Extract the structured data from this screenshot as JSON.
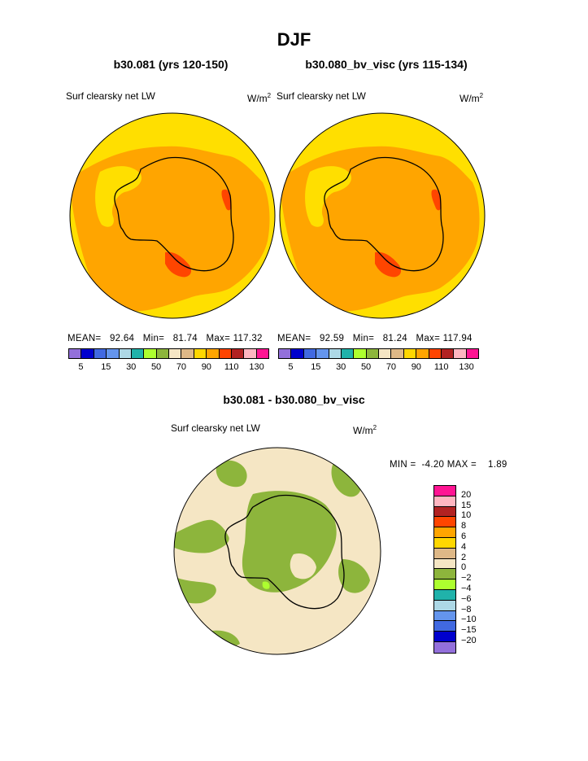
{
  "title": "DJF",
  "panels": [
    {
      "subtitle": "b30.081 (yrs 120-150)",
      "variable": "Surf clearsky net LW",
      "units_base": "W/m",
      "units_sup": "2",
      "stats": {
        "mean_label": "MEAN=",
        "mean": "92.64",
        "min_label": "Min=",
        "min": "81.74",
        "max_label": "Max=",
        "max": "117.32"
      }
    },
    {
      "subtitle": "b30.080_bv_visc (yrs 115-134)",
      "variable": "Surf clearsky net LW",
      "units_base": "W/m",
      "units_sup": "2",
      "stats": {
        "mean_label": "MEAN=",
        "mean": "92.59",
        "min_label": "Min=",
        "min": "81.24",
        "max_label": "Max=",
        "max": "117.94"
      }
    }
  ],
  "diff_panel": {
    "subtitle": "b30.081 - b30.080_bv_visc",
    "variable": "Surf clearsky net LW",
    "units_base": "W/m",
    "units_sup": "2",
    "stats": {
      "min_label": "MIN =",
      "min": "-4.20",
      "max_label": "MAX =",
      "max": "1.89"
    }
  },
  "colorbar_top": {
    "colors": [
      "#9370db",
      "#0000cd",
      "#4169e1",
      "#6495ed",
      "#add8e6",
      "#20b2aa",
      "#adff2f",
      "#8db53c",
      "#f5e6c4",
      "#deb887",
      "#ffd700",
      "#ffa500",
      "#ff4500",
      "#b22222",
      "#ffb6c1",
      "#ff1493"
    ],
    "tick_labels": [
      "5",
      "15",
      "30",
      "50",
      "70",
      "90",
      "110",
      "130"
    ]
  },
  "colorbar_diff": {
    "colors": [
      "#ff1493",
      "#ffb6c1",
      "#b22222",
      "#ff4500",
      "#ffa500",
      "#ffd700",
      "#deb887",
      "#f5e6c4",
      "#8db53c",
      "#adff2f",
      "#20b2aa",
      "#add8e6",
      "#6495ed",
      "#4169e1",
      "#0000cd",
      "#9370db"
    ],
    "tick_labels": [
      "20",
      "15",
      "10",
      "8",
      "6",
      "4",
      "2",
      "0",
      "−2",
      "−4",
      "−6",
      "−8",
      "−10",
      "−15",
      "−20"
    ]
  },
  "map_colors": {
    "orange": "#ffa500",
    "yellow": "#ffdf00",
    "red": "#ff4500",
    "beige": "#f5e6c4",
    "green": "#8db53c",
    "lightgreen": "#adff2f",
    "coast": "#000000"
  }
}
